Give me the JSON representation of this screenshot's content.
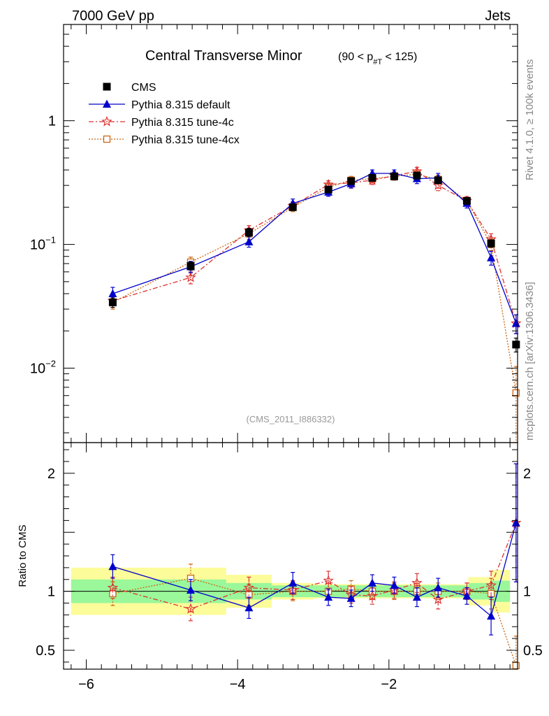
{
  "header": {
    "left": "7000 GeV pp",
    "right": "Jets"
  },
  "side_labels": {
    "rivet": "Rivet 4.1.0, ≥ 100k events",
    "mcplots": "mcplots.cern.ch [arXiv:1306.3436]"
  },
  "analysis_tag": "(CMS_2011_I886332)",
  "chart_data": {
    "type": "line",
    "title": "Central Transverse Minor",
    "title_cut": {
      "pre": "(90 < p",
      "sub": "#T",
      "post": " < 125)"
    },
    "xlim": [
      -6.3,
      -0.3
    ],
    "main_ylim": [
      0.0025,
      6
    ],
    "main_yscale": "log",
    "main_y_ticks": [
      {
        "value": 1,
        "base": "1",
        "exp": ""
      },
      {
        "value": 0.1,
        "base": "10",
        "exp": "−1"
      },
      {
        "value": 0.01,
        "base": "10",
        "exp": "−2"
      }
    ],
    "x_ticks": [
      {
        "value": -6,
        "label": "−6"
      },
      {
        "value": -4,
        "label": "−4"
      },
      {
        "value": -2,
        "label": "−2"
      }
    ],
    "ratio_ylabel": "Ratio to CMS",
    "ratio_ylim": [
      0.34,
      2.26
    ],
    "ratio_y_ticks": [
      {
        "value": 2,
        "label": "2"
      },
      {
        "value": 1,
        "label": "1"
      },
      {
        "value": 0.5,
        "label": "0.5"
      }
    ],
    "bin_edges": [
      -6.2,
      -5.1,
      -4.15,
      -3.55,
      -3.0,
      -2.65,
      -2.35,
      -2.1,
      -1.85,
      -1.55,
      -1.25,
      -0.95,
      -0.65,
      -0.4
    ],
    "x": [
      -5.65,
      -4.62,
      -3.85,
      -3.27,
      -2.8,
      -2.5,
      -2.22,
      -1.93,
      -1.63,
      -1.35,
      -0.97,
      -0.65,
      -0.32
    ],
    "series": [
      {
        "name": "CMS",
        "color": "#000000",
        "marker": "square-filled",
        "dash": "",
        "values": [
          0.034,
          0.067,
          0.125,
          0.2,
          0.278,
          0.325,
          0.345,
          0.355,
          0.36,
          0.33,
          0.225,
          0.102,
          0.0155
        ],
        "errors": [
          0.003,
          0.005,
          0.01,
          0.012,
          0.015,
          0.017,
          0.018,
          0.018,
          0.02,
          0.018,
          0.013,
          0.007,
          0.002
        ],
        "ratio": [
          1,
          1,
          1,
          1,
          1,
          1,
          1,
          1,
          1,
          1,
          1,
          1,
          1
        ],
        "ratio_errors": []
      },
      {
        "name": "Pythia 8.315 default",
        "color": "#0000cc",
        "marker": "triangle-filled",
        "dash": "",
        "values": [
          0.04,
          0.066,
          0.105,
          0.215,
          0.265,
          0.31,
          0.375,
          0.375,
          0.34,
          0.345,
          0.215,
          0.078,
          0.023
        ],
        "errors": [
          0.005,
          0.007,
          0.01,
          0.018,
          0.02,
          0.025,
          0.025,
          0.025,
          0.03,
          0.03,
          0.018,
          0.01,
          0.004
        ],
        "ratio": [
          1.21,
          1.01,
          0.86,
          1.07,
          0.95,
          0.94,
          1.07,
          1.05,
          0.95,
          1.03,
          0.96,
          0.79,
          1.58
        ],
        "ratio_errors": [
          0.1,
          0.09,
          0.09,
          0.09,
          0.07,
          0.07,
          0.07,
          0.07,
          0.08,
          0.08,
          0.07,
          0.16,
          0.5
        ]
      },
      {
        "name": "Pythia 8.315 tune-4c",
        "color": "#dd3333",
        "marker": "star-open",
        "dash": "7,3,2,3",
        "values": [
          0.035,
          0.054,
          0.13,
          0.205,
          0.305,
          0.315,
          0.33,
          0.36,
          0.39,
          0.3,
          0.225,
          0.11,
          0.023
        ],
        "errors": [
          0.004,
          0.006,
          0.012,
          0.016,
          0.022,
          0.025,
          0.025,
          0.025,
          0.03,
          0.028,
          0.018,
          0.012,
          0.004
        ],
        "ratio": [
          1.03,
          0.85,
          1.03,
          1.01,
          1.09,
          0.97,
          0.96,
          1.01,
          1.07,
          0.93,
          1.0,
          1.05,
          1.58
        ],
        "ratio_errors": [
          0.09,
          0.1,
          0.09,
          0.08,
          0.08,
          0.07,
          0.07,
          0.07,
          0.08,
          0.08,
          0.07,
          0.12,
          0.5
        ]
      },
      {
        "name": "Pythia 8.315 tune-4cx",
        "color": "#cc6611",
        "marker": "square-open",
        "dash": "2,2",
        "values": [
          0.034,
          0.072,
          0.122,
          0.2,
          0.29,
          0.33,
          0.34,
          0.355,
          0.37,
          0.335,
          0.225,
          0.1,
          0.0063
        ],
        "errors": [
          0.004,
          0.007,
          0.012,
          0.016,
          0.022,
          0.025,
          0.025,
          0.025,
          0.03,
          0.028,
          0.018,
          0.011,
          0.004
        ],
        "ratio": [
          0.98,
          1.11,
          0.97,
          1.0,
          1.0,
          1.02,
          1.0,
          1.0,
          1.0,
          1.0,
          1.0,
          0.98,
          0.37
        ],
        "ratio_errors": [
          0.1,
          0.12,
          0.09,
          0.08,
          0.07,
          0.07,
          0.07,
          0.07,
          0.07,
          0.07,
          0.07,
          0.13,
          0.25
        ]
      }
    ],
    "band_inner": [
      0.1,
      0.1,
      0.07,
      0.05,
      0.05,
      0.05,
      0.05,
      0.05,
      0.05,
      0.05,
      0.05,
      0.07,
      0.09
    ],
    "band_outer": [
      0.2,
      0.2,
      0.14,
      0.07,
      0.06,
      0.06,
      0.06,
      0.06,
      0.06,
      0.06,
      0.06,
      0.12,
      0.18
    ],
    "band_colors": {
      "inner": "#9af79a",
      "outer": "#fcfc9a"
    }
  }
}
